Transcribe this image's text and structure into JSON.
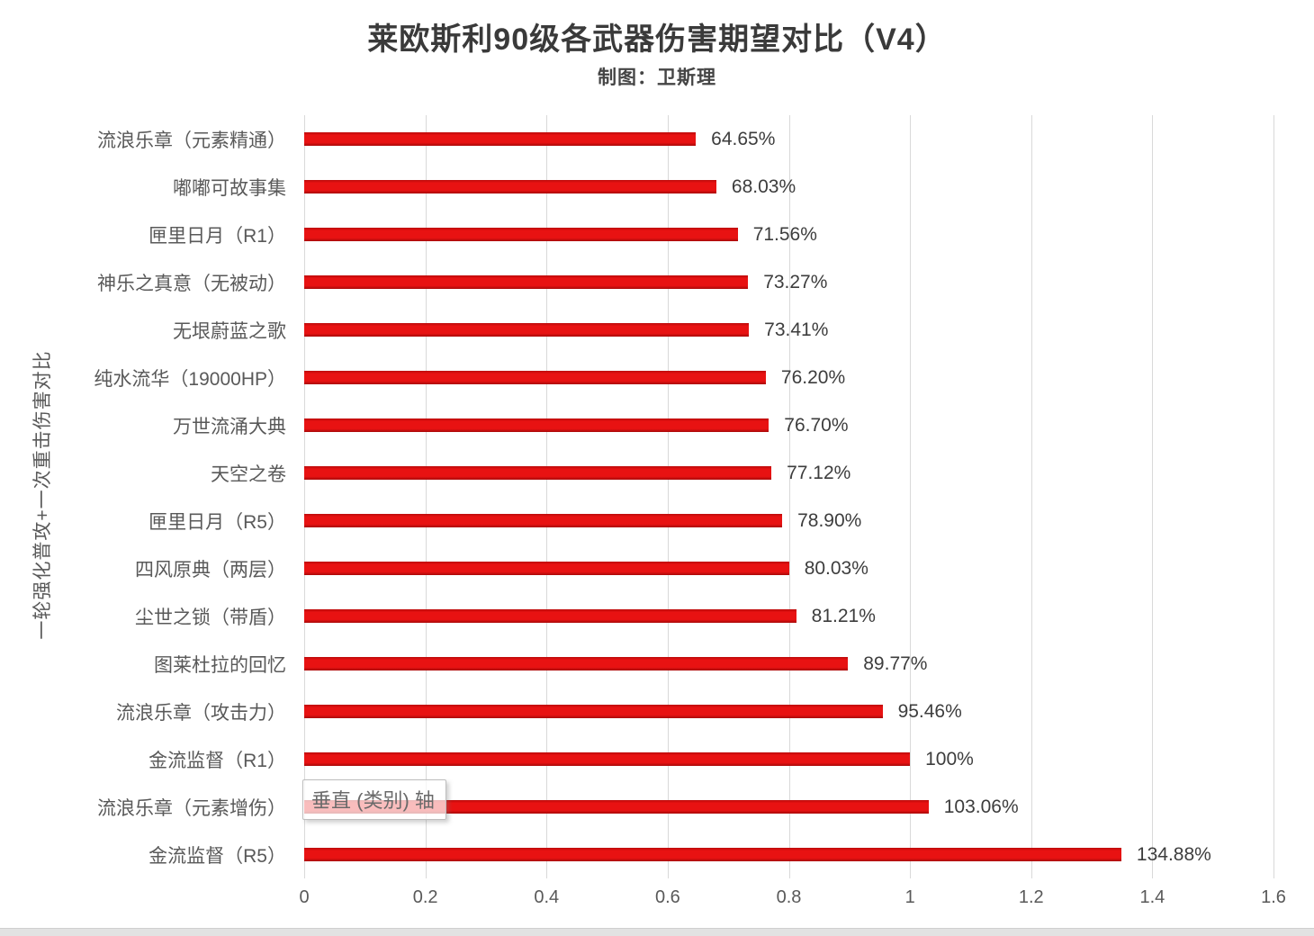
{
  "title": "莱欧斯利90级各武器伤害期望对比（V4）",
  "subtitle": "制图：卫斯理",
  "axis_tooltip": "垂直 (类别) 轴",
  "colors": {
    "bar_red": "#e11111",
    "grid_gray": "#d9d9d9",
    "category_text": "#595959",
    "value_text": "#3d3d3d",
    "title_text": "#3a3a3a"
  },
  "chart_data": {
    "type": "bar",
    "orientation": "horizontal",
    "title": "莱欧斯利90级各武器伤害期望对比（V4）",
    "subtitle": "制图：卫斯理",
    "ylabel": "一轮强化普攻+一次重击伤害对比",
    "xlabel": "",
    "categories": [
      "流浪乐章（元素精通）",
      "嘟嘟可故事集",
      "匣里日月（R1）",
      "神乐之真意（无被动）",
      "无垠蔚蓝之歌",
      "纯水流华（19000HP）",
      "万世流涌大典",
      "天空之卷",
      "匣里日月（R5）",
      "四风原典（两层）",
      "尘世之锁（带盾）",
      "图莱杜拉的回忆",
      "流浪乐章（攻击力）",
      "金流监督（R1）",
      "流浪乐章（元素增伤）",
      "金流监督（R5）"
    ],
    "values": [
      0.6465,
      0.6803,
      0.7156,
      0.7327,
      0.7341,
      0.762,
      0.767,
      0.7712,
      0.789,
      0.8003,
      0.8121,
      0.8977,
      0.9546,
      1.0,
      1.0306,
      1.3488
    ],
    "data_labels": [
      "64.65%",
      "68.03%",
      "71.56%",
      "73.27%",
      "73.41%",
      "76.20%",
      "76.70%",
      "77.12%",
      "78.90%",
      "80.03%",
      "81.21%",
      "89.77%",
      "95.46%",
      "100%",
      "103.06%",
      "134.88%"
    ],
    "xlim": [
      0,
      1.6
    ],
    "x_ticks": [
      "0",
      "0.2",
      "0.4",
      "0.6",
      "0.8",
      "1",
      "1.2",
      "1.4",
      "1.6"
    ],
    "grid": true,
    "legend": false,
    "tooltip_row_index": 14
  }
}
